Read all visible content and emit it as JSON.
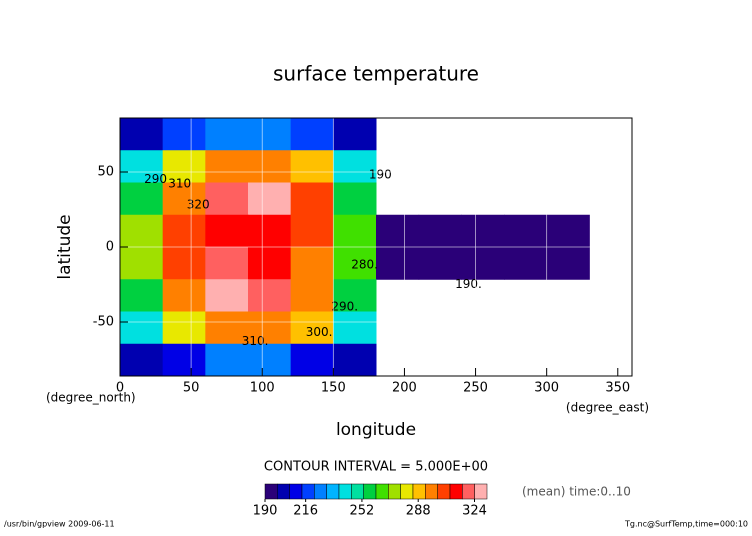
{
  "chart_data": {
    "type": "contour",
    "title": "surface temperature",
    "x_label": "longitude",
    "y_label": "latitude",
    "x_unit": "(degree_east)",
    "y_unit": "(degree_north)",
    "xlim": [
      0,
      360
    ],
    "ylim": [
      -86,
      86
    ],
    "xticks": [
      0,
      50,
      100,
      150,
      200,
      250,
      300,
      350
    ],
    "yticks": [
      -50,
      0,
      50
    ],
    "grid": true,
    "lon_edges": [
      0,
      30,
      60,
      90,
      120,
      150,
      180,
      210,
      240,
      270,
      300,
      330,
      360
    ],
    "lat_edges": [
      86,
      64.5,
      43,
      21.5,
      0,
      -21.5,
      -43,
      -64.5,
      -86
    ],
    "values": [
      [
        200,
        215,
        225,
        225,
        215,
        200,
        null,
        null,
        null,
        null,
        null,
        null
      ],
      [
        240,
        280,
        300,
        300,
        285,
        240,
        null,
        null,
        null,
        null,
        null,
        null
      ],
      [
        260,
        300,
        322,
        326,
        305,
        255,
        null,
        null,
        null,
        null,
        null,
        null
      ],
      [
        270,
        305,
        315,
        312,
        305,
        265,
        195,
        195,
        192,
        192,
        190,
        null
      ],
      [
        270,
        305,
        318,
        316,
        300,
        262,
        195,
        194,
        192,
        191,
        190,
        null
      ],
      [
        260,
        300,
        326,
        322,
        300,
        255,
        null,
        null,
        null,
        null,
        null,
        null
      ],
      [
        240,
        280,
        298,
        300,
        285,
        240,
        null,
        null,
        null,
        null,
        null,
        null
      ],
      [
        200,
        212,
        222,
        222,
        212,
        200,
        null,
        null,
        null,
        null,
        null,
        null
      ]
    ],
    "contour_labels": [
      {
        "text": "190",
        "x": 183,
        "y": 48
      },
      {
        "text": "190.",
        "x": 245,
        "y": -25
      },
      {
        "text": "320",
        "x": 55,
        "y": 28
      },
      {
        "text": "310",
        "x": 42,
        "y": 42
      },
      {
        "text": "290",
        "x": 25,
        "y": 45
      },
      {
        "text": "310.",
        "x": 95,
        "y": -63
      },
      {
        "text": "300.",
        "x": 140,
        "y": -57
      },
      {
        "text": "290.",
        "x": 158,
        "y": -40
      },
      {
        "text": "280.",
        "x": 172,
        "y": -12
      }
    ],
    "contour_interval_label": "CONTOUR INTERVAL = 5.000E+00",
    "colorbar": {
      "range": [
        190,
        332
      ],
      "ticks": [
        190,
        216,
        252,
        288,
        324
      ],
      "colors": [
        "#2a0078",
        "#0000b0",
        "#0000e6",
        "#0040ff",
        "#0080ff",
        "#00b4ff",
        "#00e0e0",
        "#00e0a0",
        "#00d040",
        "#40e000",
        "#a0e000",
        "#e8e800",
        "#ffc000",
        "#ff8000",
        "#ff4000",
        "#ff0000",
        "#ff6060",
        "#ffb0b0"
      ]
    },
    "note": "(mean) time:0..10",
    "footer_left": "/usr/bin/gpview  2009-06-11",
    "footer_right": "Tg.nc@SurfTemp,time=000:10"
  }
}
